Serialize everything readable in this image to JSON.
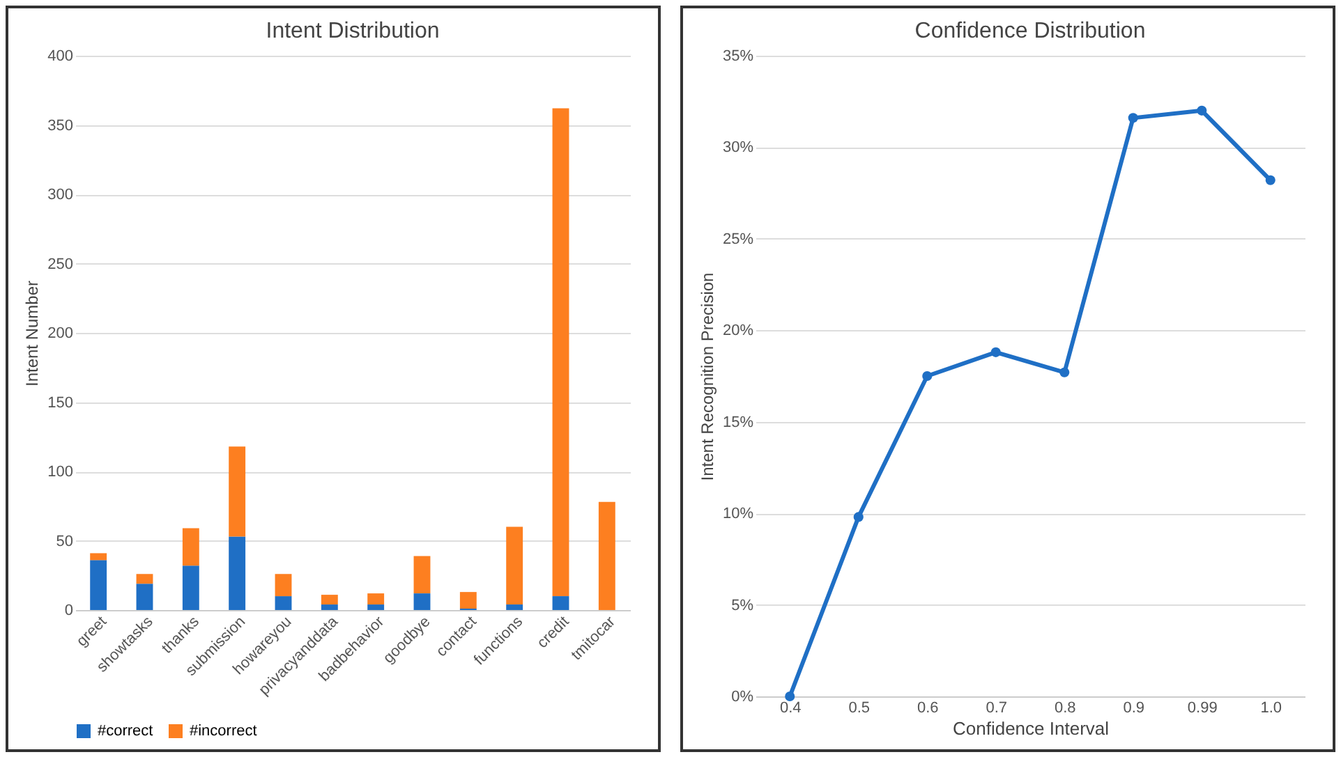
{
  "chart_data": [
    {
      "type": "bar",
      "title": "Intent Distribution",
      "ylabel": "Intent Number",
      "stacked": true,
      "legend": "bottom",
      "grid": "y",
      "categories": [
        "greet",
        "showtasks",
        "thanks",
        "submission",
        "howareyou",
        "privacyanddata",
        "badbehavior",
        "goodbye",
        "contact",
        "functions",
        "credit",
        "tmitocar"
      ],
      "series": [
        {
          "name": "#correct",
          "color": "#1f6fc5",
          "values": [
            36,
            19,
            32,
            53,
            10,
            4,
            4,
            12,
            1,
            4,
            10,
            0
          ]
        },
        {
          "name": "#incorrect",
          "color": "#fd7f20",
          "values": [
            5,
            7,
            27,
            65,
            16,
            7,
            8,
            27,
            12,
            56,
            352,
            78
          ]
        }
      ],
      "ylim": [
        0,
        400
      ],
      "yticks": [
        0,
        50,
        100,
        150,
        200,
        250,
        300,
        350,
        400
      ]
    },
    {
      "type": "line",
      "title": "Confidence Distribution",
      "xlabel": "Confidence Interval",
      "ylabel": "Intent Recognition Precision",
      "grid": "y",
      "marker": "circle",
      "line_style": "solid",
      "legend": false,
      "categories": [
        "0.4",
        "0.5",
        "0.6",
        "0.7",
        "0.8",
        "0.9",
        "0.99",
        "1.0"
      ],
      "series": [
        {
          "color": "#1f6fc5",
          "values": [
            0,
            0.098,
            0.175,
            0.188,
            0.177,
            0.316,
            0.32,
            0.282
          ]
        }
      ],
      "ylim": [
        0,
        0.35
      ],
      "yticks": [
        {
          "value": 0,
          "label": "0%"
        },
        {
          "value": 0.05,
          "label": "5%"
        },
        {
          "value": 0.1,
          "label": "10%"
        },
        {
          "value": 0.15,
          "label": "15%"
        },
        {
          "value": 0.2,
          "label": "20%"
        },
        {
          "value": 0.25,
          "label": "25%"
        },
        {
          "value": 0.3,
          "label": "30%"
        },
        {
          "value": 0.35,
          "label": "35%"
        }
      ]
    }
  ]
}
